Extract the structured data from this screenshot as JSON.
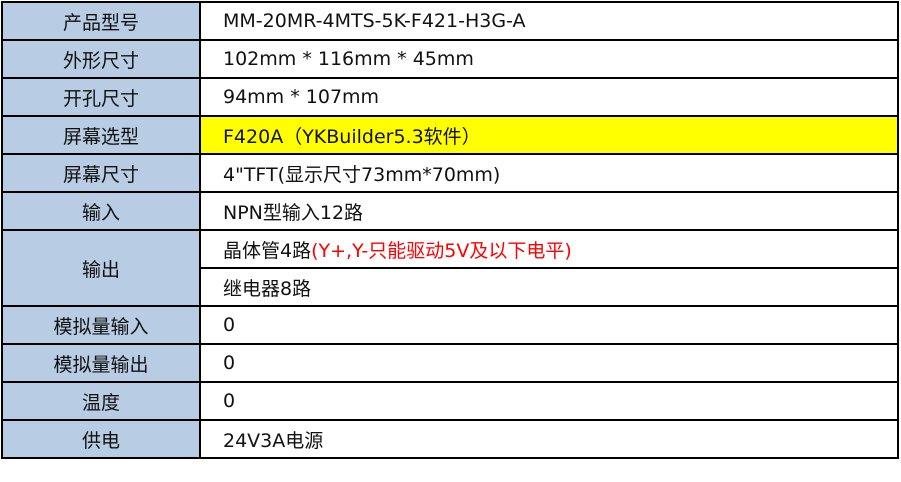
{
  "rows": [
    {
      "label": "产品型号",
      "value": "MM-20MR-4MTS-5K-F421-H3G-A"
    },
    {
      "label": "外形尺寸",
      "value": "102mm * 116mm * 45mm"
    },
    {
      "label": "开孔尺寸",
      "value": "94mm * 107mm"
    },
    {
      "label": "屏幕选型",
      "value": "F420A（YKBuilder5.3软件）",
      "highlight": "#ffff00"
    },
    {
      "label": "屏幕尺寸",
      "value": "4\"TFT(显示尺寸73mm*70mm)"
    },
    {
      "label": "输入",
      "value": "NPN型输入12路"
    },
    {
      "label": "输出",
      "value": "晶体管4路",
      "note": "(Y+,Y-只能驱动5V及以下电平)",
      "note_color": "#ff0000",
      "value2": "继电器8路"
    },
    {
      "label": "模拟量输入",
      "value": "0"
    },
    {
      "label": "模拟量输出",
      "value": "0"
    },
    {
      "label": "温度",
      "value": "0"
    },
    {
      "label": "供电",
      "value": "24V3A电源"
    }
  ]
}
